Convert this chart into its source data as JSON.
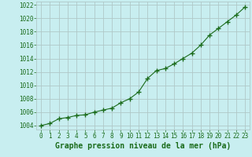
{
  "x": [
    0,
    1,
    2,
    3,
    4,
    5,
    6,
    7,
    8,
    9,
    10,
    11,
    12,
    13,
    14,
    15,
    16,
    17,
    18,
    19,
    20,
    21,
    22,
    23
  ],
  "y": [
    1004.0,
    1004.3,
    1005.0,
    1005.2,
    1005.5,
    1005.6,
    1006.0,
    1006.3,
    1006.6,
    1007.4,
    1008.0,
    1009.0,
    1011.0,
    1012.2,
    1012.5,
    1013.2,
    1014.0,
    1014.8,
    1016.0,
    1017.5,
    1018.5,
    1019.5,
    1020.5,
    1021.7
  ],
  "line_color": "#1a6b1a",
  "marker": "+",
  "marker_size": 4.5,
  "bg_color": "#c8eef0",
  "grid_color": "#b0c8c8",
  "xlabel": "Graphe pression niveau de la mer (hPa)",
  "xlabel_color": "#1a6b1a",
  "ylabel_ticks": [
    1004,
    1006,
    1008,
    1010,
    1012,
    1014,
    1016,
    1018,
    1020,
    1022
  ],
  "ylim": [
    1003.4,
    1022.5
  ],
  "xlim": [
    -0.5,
    23.5
  ],
  "xticks": [
    0,
    1,
    2,
    3,
    4,
    5,
    6,
    7,
    8,
    9,
    10,
    11,
    12,
    13,
    14,
    15,
    16,
    17,
    18,
    19,
    20,
    21,
    22,
    23
  ],
  "tick_color": "#1a6b1a",
  "tick_fontsize": 5.5,
  "xlabel_fontsize": 7.0
}
